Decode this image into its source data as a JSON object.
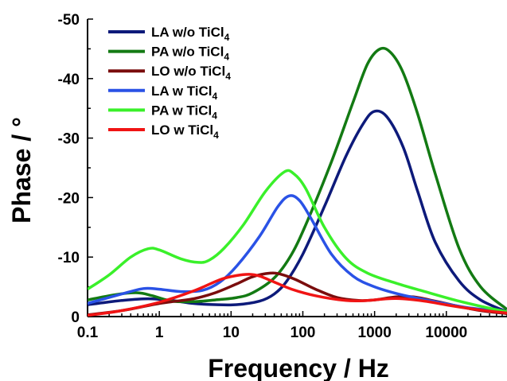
{
  "chart_data": {
    "type": "line",
    "xlabel": "Frequency / Hz",
    "ylabel": "Phase / °",
    "xscale": "log",
    "xlim": [
      0.1,
      70000
    ],
    "ylim": [
      0,
      -50
    ],
    "y_inverted": true,
    "x_ticks": [
      0.1,
      1,
      10,
      100,
      1000,
      10000
    ],
    "x_tick_labels": [
      "0.1",
      "1",
      "10",
      "100",
      "1000",
      "10000"
    ],
    "y_ticks": [
      0,
      -10,
      -20,
      -30,
      -40,
      -50
    ],
    "y_tick_labels": [
      "0",
      "-10",
      "-20",
      "-30",
      "-40",
      "-50"
    ],
    "grid": false,
    "legend_position": "top-left",
    "series": [
      {
        "name": "LA w/o TiCl",
        "sub": "4",
        "color": "#0d1a7a",
        "points": [
          [
            0.1,
            -2
          ],
          [
            0.3,
            -2.7
          ],
          [
            0.7,
            -3
          ],
          [
            1.5,
            -2.7
          ],
          [
            3,
            -2.2
          ],
          [
            6,
            -2
          ],
          [
            12,
            -2
          ],
          [
            25,
            -2.6
          ],
          [
            40,
            -3.8
          ],
          [
            60,
            -6
          ],
          [
            100,
            -10.5
          ],
          [
            200,
            -18.5
          ],
          [
            400,
            -27
          ],
          [
            700,
            -32.5
          ],
          [
            1000,
            -34.5
          ],
          [
            1500,
            -33.5
          ],
          [
            2500,
            -28.5
          ],
          [
            4000,
            -21
          ],
          [
            7000,
            -12.5
          ],
          [
            15000,
            -6
          ],
          [
            30000,
            -2.8
          ],
          [
            70000,
            -0.8
          ]
        ]
      },
      {
        "name": "PA w/o TiCl",
        "sub": "4",
        "color": "#137a13",
        "points": [
          [
            0.1,
            -2.8
          ],
          [
            0.25,
            -3.7
          ],
          [
            0.5,
            -4
          ],
          [
            0.8,
            -3.5
          ],
          [
            1.5,
            -2.6
          ],
          [
            3,
            -2.5
          ],
          [
            6,
            -2.8
          ],
          [
            12,
            -3.2
          ],
          [
            20,
            -4
          ],
          [
            40,
            -6.5
          ],
          [
            70,
            -10.5
          ],
          [
            120,
            -16.5
          ],
          [
            250,
            -26
          ],
          [
            500,
            -36
          ],
          [
            800,
            -42.5
          ],
          [
            1200,
            -45
          ],
          [
            1700,
            -44.3
          ],
          [
            2500,
            -41
          ],
          [
            4000,
            -34
          ],
          [
            7000,
            -24
          ],
          [
            15000,
            -11.5
          ],
          [
            30000,
            -5
          ],
          [
            70000,
            -1.2
          ]
        ]
      },
      {
        "name": "LO w/o TiCl",
        "sub": "4",
        "color": "#7a0d0d",
        "points": [
          [
            0.1,
            -0.3
          ],
          [
            0.3,
            -1
          ],
          [
            1,
            -2.2
          ],
          [
            3,
            -3
          ],
          [
            6,
            -4
          ],
          [
            12,
            -5.5
          ],
          [
            20,
            -6.7
          ],
          [
            35,
            -7.3
          ],
          [
            50,
            -7.1
          ],
          [
            80,
            -6.2
          ],
          [
            150,
            -4.6
          ],
          [
            300,
            -3.2
          ],
          [
            600,
            -2.7
          ],
          [
            1000,
            -2.8
          ],
          [
            2000,
            -3.3
          ],
          [
            3500,
            -3.3
          ],
          [
            7000,
            -2.6
          ],
          [
            15000,
            -1.7
          ],
          [
            30000,
            -1
          ],
          [
            70000,
            -0.5
          ]
        ]
      },
      {
        "name": "LA w TiCl",
        "sub": "4",
        "color": "#2a52e6",
        "points": [
          [
            0.1,
            -2.2
          ],
          [
            0.3,
            -3.8
          ],
          [
            0.6,
            -4.7
          ],
          [
            1,
            -4.6
          ],
          [
            2,
            -4.2
          ],
          [
            4,
            -4.4
          ],
          [
            7,
            -5.8
          ],
          [
            12,
            -8.5
          ],
          [
            25,
            -13.5
          ],
          [
            45,
            -18.5
          ],
          [
            65,
            -20.3
          ],
          [
            90,
            -19.5
          ],
          [
            130,
            -16.5
          ],
          [
            250,
            -10.5
          ],
          [
            500,
            -6.8
          ],
          [
            1000,
            -5
          ],
          [
            2500,
            -3.6
          ],
          [
            7000,
            -2.5
          ],
          [
            20000,
            -1.5
          ],
          [
            70000,
            -0.8
          ]
        ]
      },
      {
        "name": "PA w TiCl",
        "sub": "4",
        "color": "#3af02a",
        "points": [
          [
            0.1,
            -4.6
          ],
          [
            0.2,
            -7
          ],
          [
            0.4,
            -10
          ],
          [
            0.7,
            -11.4
          ],
          [
            1,
            -11.2
          ],
          [
            2,
            -9.7
          ],
          [
            3.5,
            -9.1
          ],
          [
            5,
            -9.5
          ],
          [
            8,
            -11.5
          ],
          [
            15,
            -15.5
          ],
          [
            30,
            -21
          ],
          [
            55,
            -24.3
          ],
          [
            75,
            -24
          ],
          [
            110,
            -21.5
          ],
          [
            200,
            -15
          ],
          [
            400,
            -9.8
          ],
          [
            800,
            -7.3
          ],
          [
            2000,
            -5.6
          ],
          [
            5000,
            -4.2
          ],
          [
            15000,
            -2.6
          ],
          [
            40000,
            -1.4
          ],
          [
            70000,
            -0.8
          ]
        ]
      },
      {
        "name": "LO w TiCl",
        "sub": "4",
        "color": "#f01414",
        "points": [
          [
            0.1,
            -0.2
          ],
          [
            0.3,
            -1
          ],
          [
            1,
            -2.4
          ],
          [
            3,
            -4.3
          ],
          [
            7,
            -6.2
          ],
          [
            12,
            -6.9
          ],
          [
            18,
            -7.1
          ],
          [
            25,
            -6.8
          ],
          [
            40,
            -5.8
          ],
          [
            70,
            -4.6
          ],
          [
            150,
            -3.5
          ],
          [
            400,
            -2.7
          ],
          [
            800,
            -2.7
          ],
          [
            1500,
            -3
          ],
          [
            2500,
            -3
          ],
          [
            5000,
            -2.6
          ],
          [
            12000,
            -1.8
          ],
          [
            30000,
            -1.1
          ],
          [
            70000,
            -0.6
          ]
        ]
      }
    ]
  }
}
